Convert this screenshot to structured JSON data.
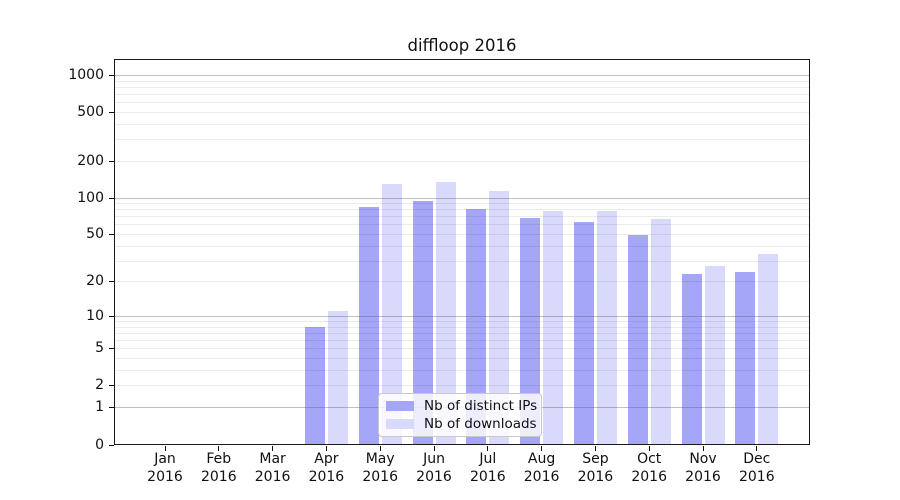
{
  "chart_data": {
    "type": "bar",
    "title": "diffloop 2016",
    "categories": [
      {
        "month": "Jan",
        "year": "2016"
      },
      {
        "month": "Feb",
        "year": "2016"
      },
      {
        "month": "Mar",
        "year": "2016"
      },
      {
        "month": "Apr",
        "year": "2016"
      },
      {
        "month": "May",
        "year": "2016"
      },
      {
        "month": "Jun",
        "year": "2016"
      },
      {
        "month": "Jul",
        "year": "2016"
      },
      {
        "month": "Aug",
        "year": "2016"
      },
      {
        "month": "Sep",
        "year": "2016"
      },
      {
        "month": "Oct",
        "year": "2016"
      },
      {
        "month": "Nov",
        "year": "2016"
      },
      {
        "month": "Dec",
        "year": "2016"
      }
    ],
    "series": [
      {
        "name": "Nb of distinct IPs",
        "slug": "distinct-ips",
        "color": "#a6a6f8",
        "values": [
          0,
          0,
          0,
          8,
          84,
          93,
          80,
          68,
          63,
          49,
          23,
          24
        ]
      },
      {
        "name": "Nb of downloads",
        "slug": "downloads",
        "color": "#d9d9fb",
        "values": [
          0,
          0,
          0,
          11,
          130,
          133,
          113,
          78,
          77,
          66,
          27,
          34
        ]
      }
    ],
    "y_axis": {
      "ticks": [
        1000,
        500,
        200,
        100,
        50,
        20,
        10,
        5,
        2,
        1,
        0
      ],
      "scale": "log10(value+1)",
      "ylim": [
        0,
        1350
      ],
      "grid": "horizontal major at 1,10,100,1000 with faint minors"
    },
    "legend": {
      "position": "inside lower-center"
    },
    "colors": {
      "axis": "#1a1a1a",
      "major_grid": "#9a9a9a",
      "minor_grid": "#e8e8e8"
    }
  }
}
